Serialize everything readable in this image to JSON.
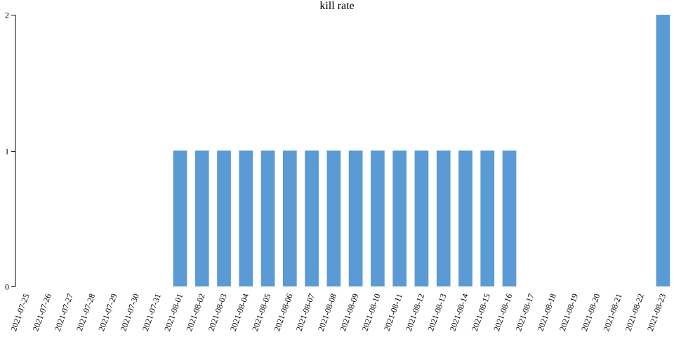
{
  "chart_data": {
    "type": "bar",
    "title": "kill rate",
    "xlabel": "",
    "ylabel": "",
    "ylim": [
      0,
      2
    ],
    "yticks": [
      "0",
      "1",
      "2"
    ],
    "bar_color": "#5b9bd5",
    "axis_color": "#000000",
    "grid": false,
    "legend": "none",
    "categories": [
      "2021-07-25",
      "2021-07-26",
      "2021-07-27",
      "2021-07-28",
      "2021-07-29",
      "2021-07-30",
      "2021-07-31",
      "2021-08-01",
      "2021-08-02",
      "2021-08-03",
      "2021-08-04",
      "2021-08-05",
      "2021-08-06",
      "2021-08-07",
      "2021-08-08",
      "2021-08-09",
      "2021-08-10",
      "2021-08-11",
      "2021-08-12",
      "2021-08-13",
      "2021-08-14",
      "2021-08-15",
      "2021-08-16",
      "2021-08-17",
      "2021-08-18",
      "2021-08-19",
      "2021-08-20",
      "2021-08-21",
      "2021-08-22",
      "2021-08-23"
    ],
    "values": [
      0,
      0,
      0,
      0,
      0,
      0,
      0,
      1,
      1,
      1,
      1,
      1,
      1,
      1,
      1,
      1,
      1,
      1,
      1,
      1,
      1,
      1,
      1,
      0,
      0,
      0,
      0,
      0,
      0,
      2
    ]
  }
}
